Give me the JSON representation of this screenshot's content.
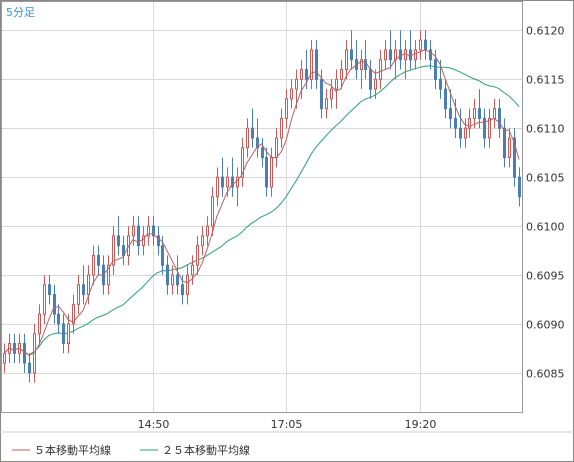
{
  "chart_data": {
    "type": "candlestick",
    "timeframe_label": "5分足",
    "ylim": [
      0.6081,
      0.6123
    ],
    "y_ticks": [
      "0.6085",
      "0.6090",
      "0.6095",
      "0.6100",
      "0.6105",
      "0.6110",
      "0.6115",
      "0.6120"
    ],
    "x_ticks": [
      {
        "label": "14:50",
        "index": 30
      },
      {
        "label": "17:05",
        "index": 57
      },
      {
        "label": "19:20",
        "index": 84
      }
    ],
    "grid": true,
    "colors": {
      "up": "#c85a5a",
      "down": "#4a7fb0",
      "ma5": "#b86060",
      "ma25": "#2aa070",
      "grid": "#d8d8d8",
      "border": "#888888",
      "axis_text": "#333333",
      "corner_text": "#3a8fd0"
    },
    "legend": [
      {
        "label": "５本移動平均線",
        "color": "#b86060"
      },
      {
        "label": "２５本移動平均線",
        "color": "#2aa070"
      }
    ],
    "candles": [
      [
        0.6086,
        0.6088,
        0.6085,
        0.6087
      ],
      [
        0.6087,
        0.6089,
        0.6086,
        0.6088
      ],
      [
        0.6088,
        0.6089,
        0.6086,
        0.6087
      ],
      [
        0.6087,
        0.6089,
        0.6086,
        0.6088
      ],
      [
        0.6088,
        0.6089,
        0.6085,
        0.6086
      ],
      [
        0.6086,
        0.6087,
        0.6084,
        0.6085
      ],
      [
        0.6085,
        0.609,
        0.6084,
        0.6089
      ],
      [
        0.6089,
        0.6092,
        0.6088,
        0.6091
      ],
      [
        0.6091,
        0.6095,
        0.609,
        0.6094
      ],
      [
        0.6094,
        0.6095,
        0.6092,
        0.6093
      ],
      [
        0.6093,
        0.6094,
        0.609,
        0.6091
      ],
      [
        0.6091,
        0.6092,
        0.6089,
        0.609
      ],
      [
        0.609,
        0.6091,
        0.6087,
        0.6088
      ],
      [
        0.6088,
        0.6091,
        0.6087,
        0.609
      ],
      [
        0.609,
        0.6093,
        0.6089,
        0.6092
      ],
      [
        0.6092,
        0.6095,
        0.6091,
        0.6094
      ],
      [
        0.6094,
        0.6096,
        0.6092,
        0.6093
      ],
      [
        0.6093,
        0.6096,
        0.6092,
        0.6095
      ],
      [
        0.6095,
        0.6098,
        0.6094,
        0.6097
      ],
      [
        0.6097,
        0.6098,
        0.6095,
        0.6096
      ],
      [
        0.6096,
        0.6097,
        0.6093,
        0.6094
      ],
      [
        0.6094,
        0.6097,
        0.6093,
        0.6096
      ],
      [
        0.6096,
        0.61,
        0.6095,
        0.6099
      ],
      [
        0.6099,
        0.6101,
        0.6097,
        0.6098
      ],
      [
        0.6098,
        0.6099,
        0.6096,
        0.6097
      ],
      [
        0.6097,
        0.61,
        0.6096,
        0.6099
      ],
      [
        0.6099,
        0.6101,
        0.6098,
        0.61
      ],
      [
        0.61,
        0.6101,
        0.6097,
        0.6098
      ],
      [
        0.6098,
        0.61,
        0.6097,
        0.6099
      ],
      [
        0.6099,
        0.6101,
        0.6098,
        0.61
      ],
      [
        0.61,
        0.6101,
        0.6098,
        0.6099
      ],
      [
        0.6099,
        0.61,
        0.6097,
        0.6098
      ],
      [
        0.6098,
        0.6099,
        0.6095,
        0.6096
      ],
      [
        0.6096,
        0.6097,
        0.6093,
        0.6094
      ],
      [
        0.6094,
        0.6096,
        0.6093,
        0.6095
      ],
      [
        0.6095,
        0.6097,
        0.6093,
        0.6094
      ],
      [
        0.6094,
        0.6095,
        0.6092,
        0.6093
      ],
      [
        0.6093,
        0.6096,
        0.6092,
        0.6095
      ],
      [
        0.6095,
        0.6097,
        0.6094,
        0.6096
      ],
      [
        0.6096,
        0.6099,
        0.6095,
        0.6098
      ],
      [
        0.6098,
        0.61,
        0.6097,
        0.6099
      ],
      [
        0.6099,
        0.6101,
        0.6098,
        0.61
      ],
      [
        0.61,
        0.6104,
        0.6099,
        0.6103
      ],
      [
        0.6103,
        0.6106,
        0.6102,
        0.6105
      ],
      [
        0.6105,
        0.6107,
        0.6103,
        0.6104
      ],
      [
        0.6104,
        0.6106,
        0.6103,
        0.6105
      ],
      [
        0.6105,
        0.6107,
        0.6103,
        0.6104
      ],
      [
        0.6104,
        0.6106,
        0.6102,
        0.6105
      ],
      [
        0.6105,
        0.6109,
        0.6104,
        0.6108
      ],
      [
        0.6108,
        0.6111,
        0.6107,
        0.611
      ],
      [
        0.611,
        0.6112,
        0.6108,
        0.6109
      ],
      [
        0.6109,
        0.6111,
        0.6107,
        0.6108
      ],
      [
        0.6108,
        0.6109,
        0.6106,
        0.6107
      ],
      [
        0.6107,
        0.6108,
        0.6103,
        0.6104
      ],
      [
        0.6104,
        0.6108,
        0.6103,
        0.6107
      ],
      [
        0.6107,
        0.611,
        0.6106,
        0.6109
      ],
      [
        0.6109,
        0.6112,
        0.6108,
        0.6111
      ],
      [
        0.6111,
        0.6114,
        0.611,
        0.6113
      ],
      [
        0.6113,
        0.6115,
        0.6112,
        0.6114
      ],
      [
        0.6114,
        0.6116,
        0.6112,
        0.6115
      ],
      [
        0.6115,
        0.6117,
        0.6113,
        0.6116
      ],
      [
        0.6116,
        0.6118,
        0.6114,
        0.6115
      ],
      [
        0.6115,
        0.6119,
        0.6114,
        0.6118
      ],
      [
        0.6118,
        0.6119,
        0.6114,
        0.6115
      ],
      [
        0.6115,
        0.6116,
        0.6111,
        0.6112
      ],
      [
        0.6112,
        0.6114,
        0.6111,
        0.6113
      ],
      [
        0.6113,
        0.6115,
        0.6112,
        0.6114
      ],
      [
        0.6114,
        0.6116,
        0.6112,
        0.6115
      ],
      [
        0.6115,
        0.6117,
        0.6114,
        0.6116
      ],
      [
        0.6116,
        0.6119,
        0.6115,
        0.6118
      ],
      [
        0.6118,
        0.612,
        0.6116,
        0.6117
      ],
      [
        0.6117,
        0.6119,
        0.6115,
        0.6116
      ],
      [
        0.6116,
        0.6118,
        0.6114,
        0.6117
      ],
      [
        0.6117,
        0.6119,
        0.6115,
        0.6116
      ],
      [
        0.6116,
        0.6117,
        0.6113,
        0.6114
      ],
      [
        0.6114,
        0.6116,
        0.6113,
        0.6115
      ],
      [
        0.6115,
        0.6118,
        0.6114,
        0.6117
      ],
      [
        0.6117,
        0.6119,
        0.6116,
        0.6118
      ],
      [
        0.6118,
        0.612,
        0.6116,
        0.6117
      ],
      [
        0.6117,
        0.6119,
        0.6115,
        0.6118
      ],
      [
        0.6118,
        0.612,
        0.6116,
        0.6117
      ],
      [
        0.6117,
        0.6119,
        0.6115,
        0.6118
      ],
      [
        0.6118,
        0.612,
        0.6116,
        0.6117
      ],
      [
        0.6117,
        0.6119,
        0.6116,
        0.6118
      ],
      [
        0.6118,
        0.612,
        0.6117,
        0.6119
      ],
      [
        0.6119,
        0.612,
        0.6117,
        0.6118
      ],
      [
        0.6118,
        0.6119,
        0.6116,
        0.6117
      ],
      [
        0.6117,
        0.6118,
        0.6114,
        0.6115
      ],
      [
        0.6115,
        0.6117,
        0.6113,
        0.6114
      ],
      [
        0.6114,
        0.6115,
        0.6111,
        0.6112
      ],
      [
        0.6112,
        0.6114,
        0.611,
        0.6111
      ],
      [
        0.6111,
        0.6113,
        0.6109,
        0.611
      ],
      [
        0.611,
        0.6112,
        0.6108,
        0.6109
      ],
      [
        0.6109,
        0.6111,
        0.6108,
        0.611
      ],
      [
        0.611,
        0.6112,
        0.6109,
        0.6111
      ],
      [
        0.6111,
        0.6113,
        0.611,
        0.6112
      ],
      [
        0.6112,
        0.6114,
        0.611,
        0.6111
      ],
      [
        0.6111,
        0.6112,
        0.6108,
        0.6109
      ],
      [
        0.6109,
        0.6112,
        0.6108,
        0.6111
      ],
      [
        0.6111,
        0.6113,
        0.611,
        0.6112
      ],
      [
        0.6112,
        0.6113,
        0.6109,
        0.611
      ],
      [
        0.611,
        0.6111,
        0.6106,
        0.6107
      ],
      [
        0.6107,
        0.611,
        0.6106,
        0.6109
      ],
      [
        0.6109,
        0.611,
        0.6104,
        0.6105
      ],
      [
        0.6105,
        0.6106,
        0.6102,
        0.6103
      ]
    ]
  }
}
